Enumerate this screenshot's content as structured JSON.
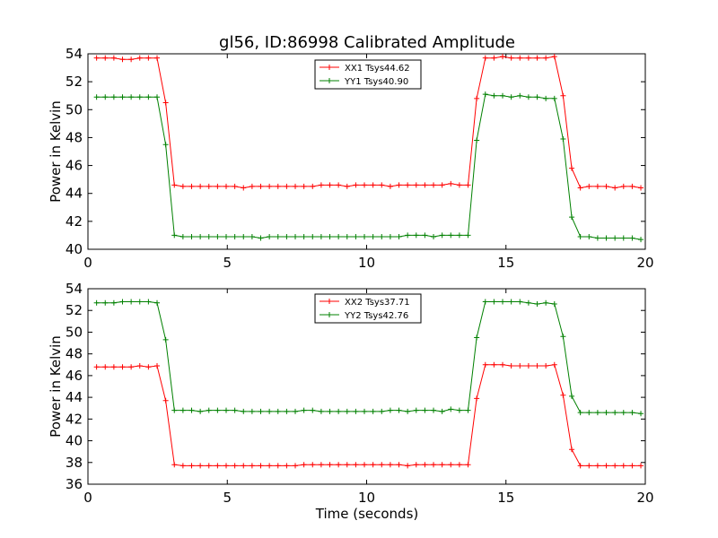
{
  "chart_data": [
    {
      "type": "line",
      "title": "gl56, ID:86998 Calibrated Amplitude",
      "xlabel": "",
      "ylabel": "Power in Kelvin",
      "xlim": [
        0,
        20
      ],
      "ylim": [
        40,
        54
      ],
      "xticks": [
        "0",
        "5",
        "10",
        "15",
        "20"
      ],
      "yticks": [
        "40",
        "42",
        "44",
        "46",
        "48",
        "50",
        "52",
        "54"
      ],
      "legend_position": "top-center",
      "grid": false,
      "x": [
        0.31,
        0.62,
        0.93,
        1.24,
        1.55,
        1.86,
        2.17,
        2.48,
        2.79,
        3.1,
        3.41,
        3.72,
        4.03,
        4.34,
        4.65,
        4.96,
        5.27,
        5.58,
        5.89,
        6.2,
        6.51,
        6.82,
        7.13,
        7.44,
        7.75,
        8.06,
        8.37,
        8.68,
        8.99,
        9.3,
        9.61,
        9.92,
        10.23,
        10.54,
        10.85,
        11.16,
        11.47,
        11.78,
        12.09,
        12.4,
        12.71,
        13.02,
        13.33,
        13.64,
        13.95,
        14.26,
        14.57,
        14.88,
        15.19,
        15.5,
        15.81,
        16.12,
        16.43,
        16.74,
        17.05,
        17.36,
        17.67,
        17.98,
        18.29,
        18.6,
        18.91,
        19.22,
        19.53,
        19.84
      ],
      "series": [
        {
          "name": "XX1 Tsys44.62",
          "color": "#ff0000",
          "values": [
            53.7,
            53.7,
            53.7,
            53.6,
            53.6,
            53.7,
            53.7,
            53.7,
            50.5,
            44.6,
            44.5,
            44.5,
            44.5,
            44.5,
            44.5,
            44.5,
            44.5,
            44.4,
            44.5,
            44.5,
            44.5,
            44.5,
            44.5,
            44.5,
            44.5,
            44.5,
            44.6,
            44.6,
            44.6,
            44.5,
            44.6,
            44.6,
            44.6,
            44.6,
            44.5,
            44.6,
            44.6,
            44.6,
            44.6,
            44.6,
            44.6,
            44.7,
            44.6,
            44.6,
            50.8,
            53.7,
            53.7,
            53.8,
            53.7,
            53.7,
            53.7,
            53.7,
            53.7,
            53.8,
            51.0,
            45.8,
            44.4,
            44.5,
            44.5,
            44.5,
            44.4,
            44.5,
            44.5,
            44.4
          ]
        },
        {
          "name": "YY1 Tsys40.90",
          "color": "#008000",
          "values": [
            50.9,
            50.9,
            50.9,
            50.9,
            50.9,
            50.9,
            50.9,
            50.9,
            47.5,
            41.0,
            40.9,
            40.9,
            40.9,
            40.9,
            40.9,
            40.9,
            40.9,
            40.9,
            40.9,
            40.8,
            40.9,
            40.9,
            40.9,
            40.9,
            40.9,
            40.9,
            40.9,
            40.9,
            40.9,
            40.9,
            40.9,
            40.9,
            40.9,
            40.9,
            40.9,
            40.9,
            41.0,
            41.0,
            41.0,
            40.9,
            41.0,
            41.0,
            41.0,
            41.0,
            47.8,
            51.1,
            51.0,
            51.0,
            50.9,
            51.0,
            50.9,
            50.9,
            50.8,
            50.8,
            47.9,
            42.3,
            40.9,
            40.9,
            40.8,
            40.8,
            40.8,
            40.8,
            40.8,
            40.7
          ]
        }
      ]
    },
    {
      "type": "line",
      "title": "",
      "xlabel": "Time (seconds)",
      "ylabel": "Power in Kelvin",
      "xlim": [
        0,
        20
      ],
      "ylim": [
        36,
        54
      ],
      "xticks": [
        "0",
        "5",
        "10",
        "15",
        "20"
      ],
      "yticks": [
        "36",
        "38",
        "40",
        "42",
        "44",
        "46",
        "48",
        "50",
        "52",
        "54"
      ],
      "legend_position": "top-center",
      "grid": false,
      "x": [
        0.31,
        0.62,
        0.93,
        1.24,
        1.55,
        1.86,
        2.17,
        2.48,
        2.79,
        3.1,
        3.41,
        3.72,
        4.03,
        4.34,
        4.65,
        4.96,
        5.27,
        5.58,
        5.89,
        6.2,
        6.51,
        6.82,
        7.13,
        7.44,
        7.75,
        8.06,
        8.37,
        8.68,
        8.99,
        9.3,
        9.61,
        9.92,
        10.23,
        10.54,
        10.85,
        11.16,
        11.47,
        11.78,
        12.09,
        12.4,
        12.71,
        13.02,
        13.33,
        13.64,
        13.95,
        14.26,
        14.57,
        14.88,
        15.19,
        15.5,
        15.81,
        16.12,
        16.43,
        16.74,
        17.05,
        17.36,
        17.67,
        17.98,
        18.29,
        18.6,
        18.91,
        19.22,
        19.53,
        19.84
      ],
      "series": [
        {
          "name": "XX2 Tsys37.71",
          "color": "#ff0000",
          "values": [
            46.8,
            46.8,
            46.8,
            46.8,
            46.8,
            46.9,
            46.8,
            46.9,
            43.7,
            37.8,
            37.7,
            37.7,
            37.7,
            37.7,
            37.7,
            37.7,
            37.7,
            37.7,
            37.7,
            37.7,
            37.7,
            37.7,
            37.7,
            37.7,
            37.8,
            37.8,
            37.8,
            37.8,
            37.8,
            37.8,
            37.8,
            37.8,
            37.8,
            37.8,
            37.8,
            37.8,
            37.7,
            37.8,
            37.8,
            37.8,
            37.8,
            37.8,
            37.8,
            37.8,
            43.9,
            47.0,
            47.0,
            47.0,
            46.9,
            46.9,
            46.9,
            46.9,
            46.9,
            47.0,
            44.2,
            39.2,
            37.7,
            37.7,
            37.7,
            37.7,
            37.7,
            37.7,
            37.7,
            37.7
          ]
        },
        {
          "name": "YY2 Tsys42.76",
          "color": "#008000",
          "values": [
            52.7,
            52.7,
            52.7,
            52.8,
            52.8,
            52.8,
            52.8,
            52.7,
            49.3,
            42.8,
            42.8,
            42.8,
            42.7,
            42.8,
            42.8,
            42.8,
            42.8,
            42.7,
            42.7,
            42.7,
            42.7,
            42.7,
            42.7,
            42.7,
            42.8,
            42.8,
            42.7,
            42.7,
            42.7,
            42.7,
            42.7,
            42.7,
            42.7,
            42.7,
            42.8,
            42.8,
            42.7,
            42.8,
            42.8,
            42.8,
            42.7,
            42.9,
            42.8,
            42.8,
            49.5,
            52.8,
            52.8,
            52.8,
            52.8,
            52.8,
            52.7,
            52.6,
            52.7,
            52.6,
            49.6,
            44.1,
            42.6,
            42.6,
            42.6,
            42.6,
            42.6,
            42.6,
            42.6,
            42.5
          ]
        }
      ]
    }
  ]
}
